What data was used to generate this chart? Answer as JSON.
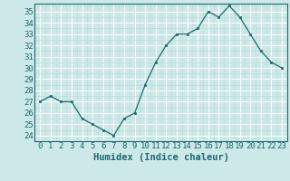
{
  "x": [
    0,
    1,
    2,
    3,
    4,
    5,
    6,
    7,
    8,
    9,
    10,
    11,
    12,
    13,
    14,
    15,
    16,
    17,
    18,
    19,
    20,
    21,
    22,
    23
  ],
  "y": [
    27,
    27.5,
    27,
    27,
    25.5,
    25,
    24.5,
    24,
    25.5,
    26,
    28.5,
    30.5,
    32,
    33,
    33,
    33.5,
    35,
    34.5,
    35.5,
    34.5,
    33,
    31.5,
    30.5,
    30
  ],
  "line_color": "#1a6b6b",
  "marker_color": "#1a6b6b",
  "bg_color": "#cde8e8",
  "grid_major_color": "#ffffff",
  "grid_minor_color": "#b8d8d8",
  "xlabel": "Humidex (Indice chaleur)",
  "xlim": [
    -0.5,
    23.5
  ],
  "ylim": [
    23.5,
    35.7
  ],
  "yticks": [
    24,
    25,
    26,
    27,
    28,
    29,
    30,
    31,
    32,
    33,
    34,
    35
  ],
  "xtick_labels": [
    "0",
    "1",
    "2",
    "3",
    "4",
    "5",
    "6",
    "7",
    "8",
    "9",
    "10",
    "11",
    "12",
    "13",
    "14",
    "15",
    "16",
    "17",
    "18",
    "19",
    "20",
    "21",
    "22",
    "23"
  ],
  "tick_color": "#1a6b6b",
  "label_fontsize": 7.5,
  "tick_fontsize": 6.5
}
